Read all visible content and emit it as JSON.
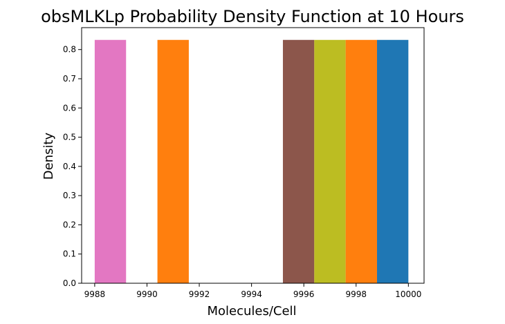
{
  "chart_data": {
    "type": "bar",
    "title": "obsMLKLp Probability Density Function at 10 Hours",
    "xlabel": "Molecules/Cell",
    "ylabel": "Density",
    "xlim": [
      9987.5,
      10000.6
    ],
    "ylim": [
      0,
      0.875
    ],
    "x_ticks": [
      9988,
      9990,
      9992,
      9994,
      9996,
      9998,
      10000
    ],
    "y_ticks": [
      0.0,
      0.1,
      0.2,
      0.3,
      0.4,
      0.5,
      0.6,
      0.7,
      0.8
    ],
    "y_tick_labels": [
      "0.0",
      "0.1",
      "0.2",
      "0.3",
      "0.4",
      "0.5",
      "0.6",
      "0.7",
      "0.8"
    ],
    "grid": false,
    "legend": false,
    "bars": [
      {
        "x0": 9988.0,
        "x1": 9989.2,
        "value": 0.833,
        "color": "#e377c2"
      },
      {
        "x0": 9990.4,
        "x1": 9991.6,
        "value": 0.833,
        "color": "#ff7f0e"
      },
      {
        "x0": 9995.2,
        "x1": 9996.4,
        "value": 0.833,
        "color": "#8c564b"
      },
      {
        "x0": 9996.4,
        "x1": 9997.6,
        "value": 0.833,
        "color": "#bcbd22"
      },
      {
        "x0": 9997.6,
        "x1": 9998.8,
        "value": 0.833,
        "color": "#ff7f0e"
      },
      {
        "x0": 9998.8,
        "x1": 10000.0,
        "value": 0.833,
        "color": "#1f77b4"
      }
    ]
  }
}
